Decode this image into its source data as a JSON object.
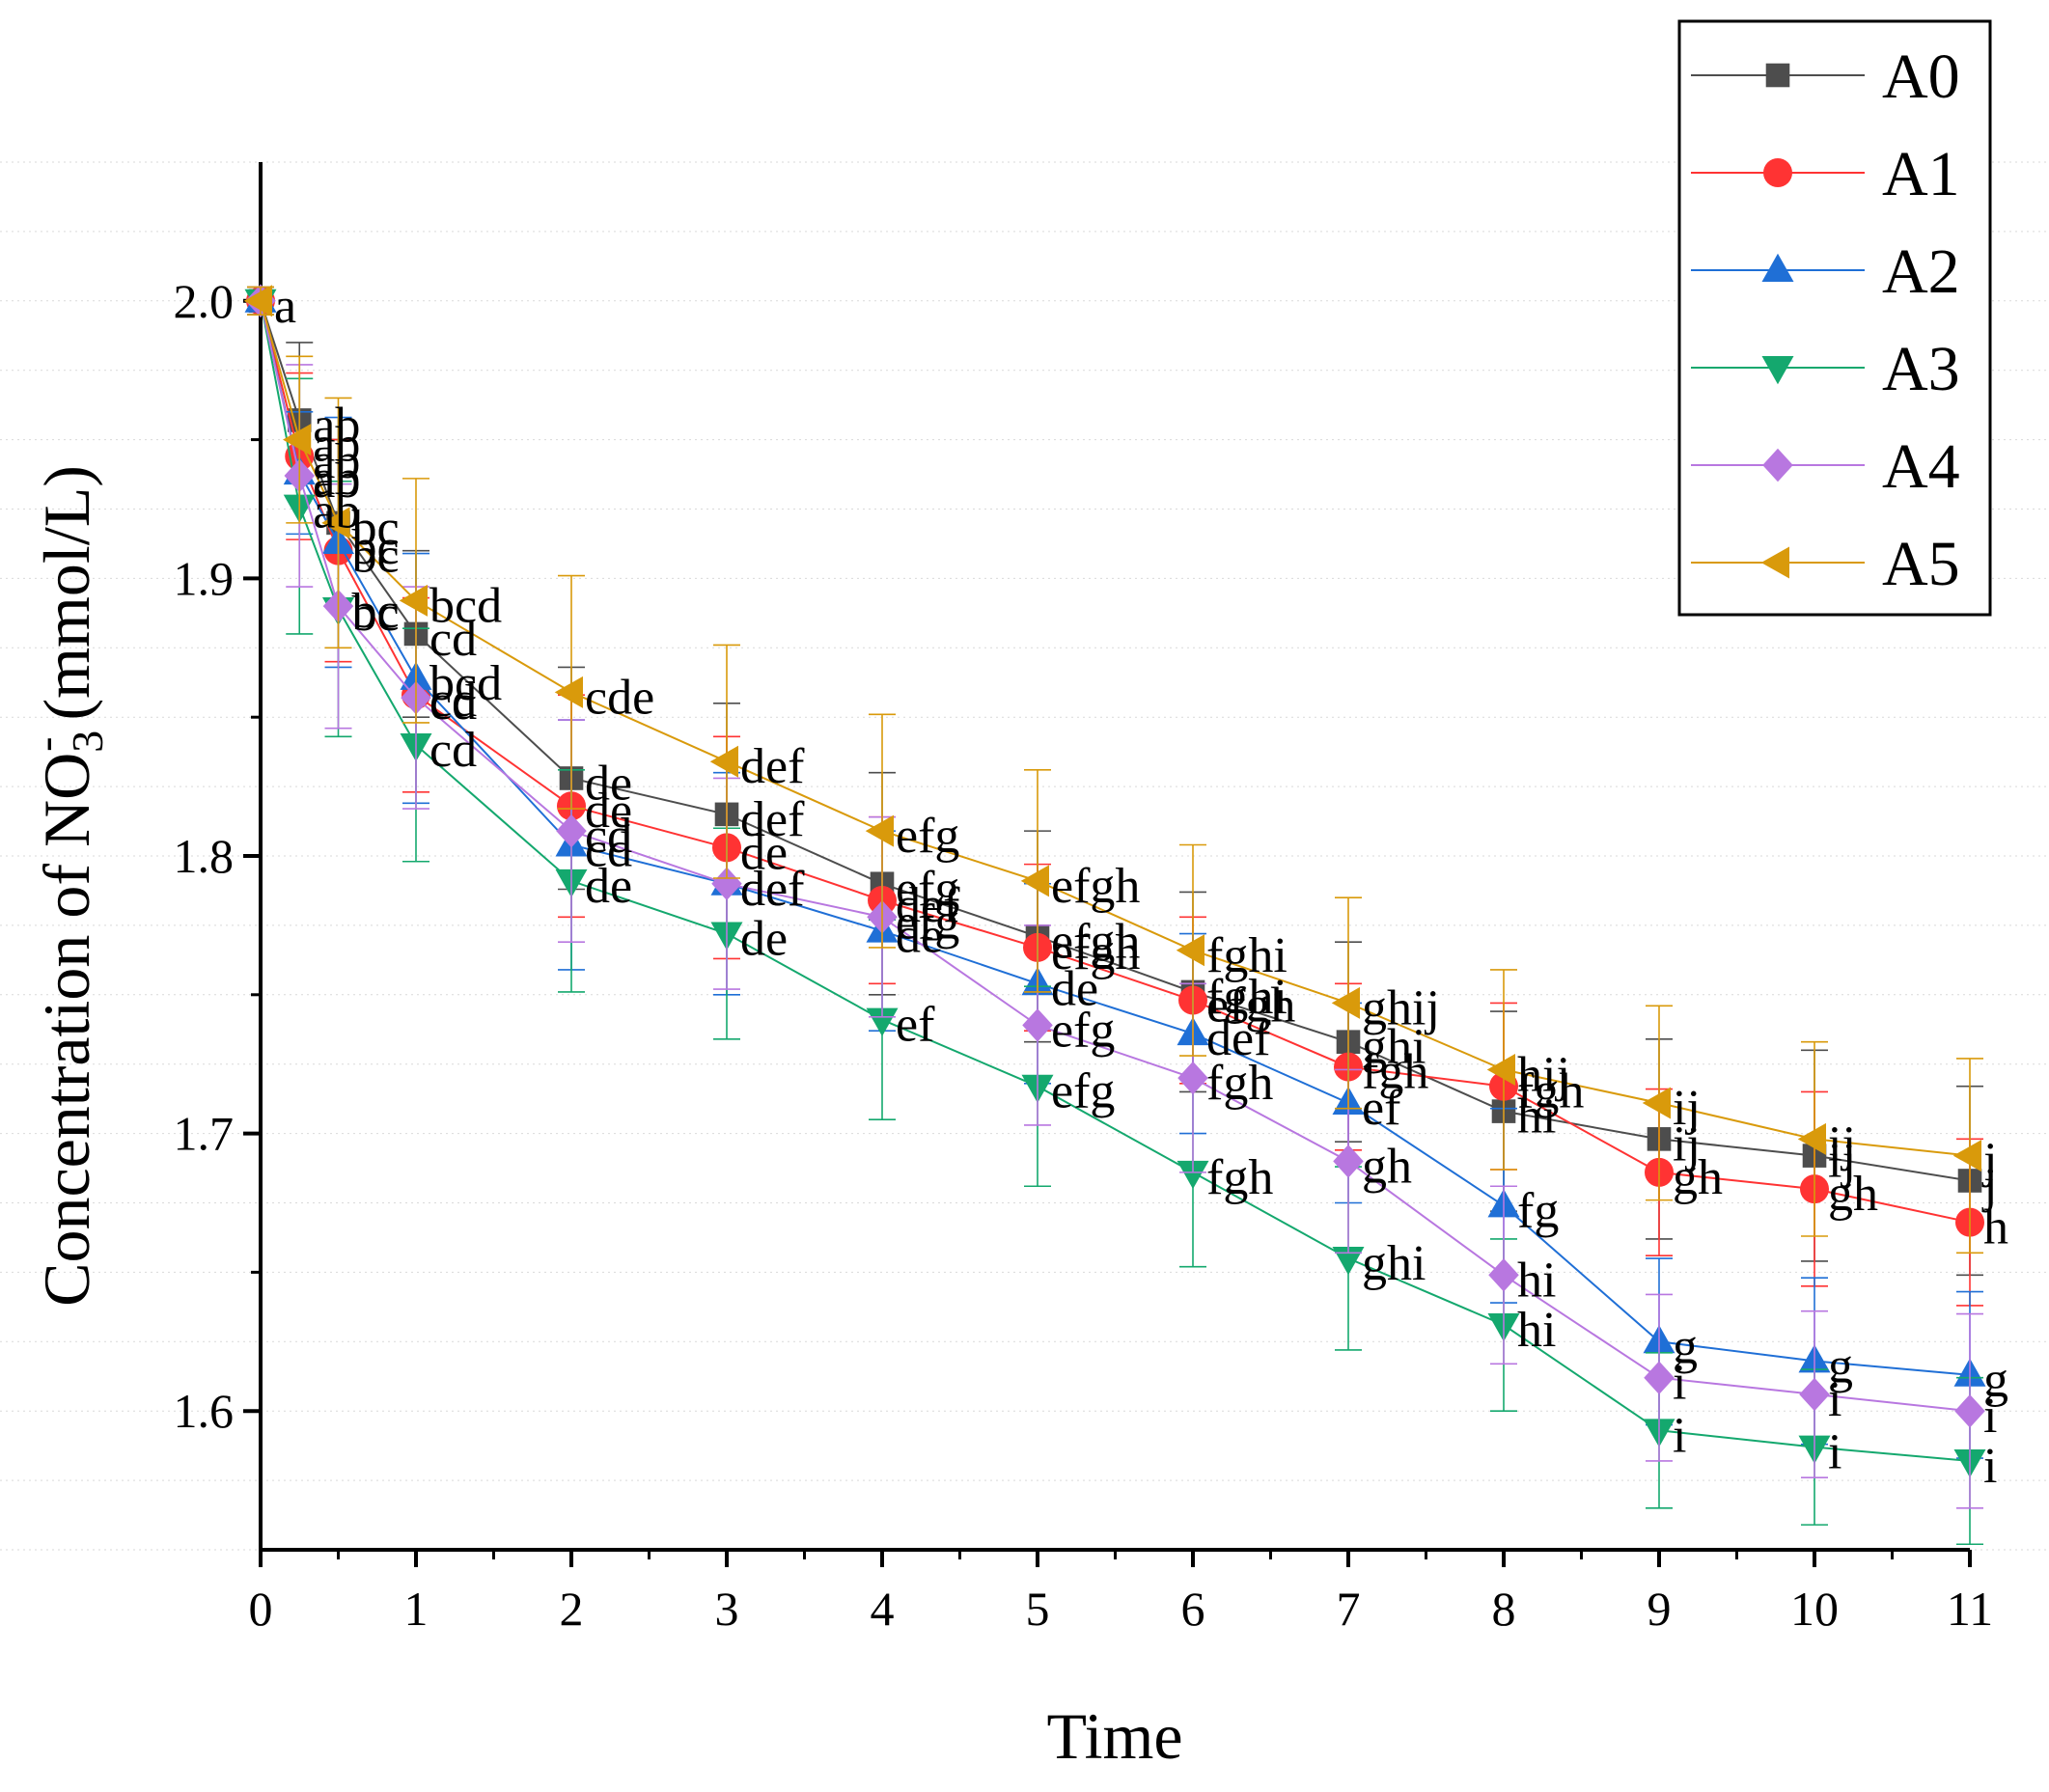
{
  "chart_data": {
    "type": "line",
    "title": "",
    "xlabel": "Time",
    "ylabel": {
      "prefix": "Concentration of NO",
      "sub": "3",
      "sup": "-",
      "suffix": " (mmol/L)"
    },
    "xlim": [
      0,
      11
    ],
    "ylim": [
      1.55,
      2.05
    ],
    "x_ticks": [
      0,
      1,
      2,
      3,
      4,
      5,
      6,
      7,
      8,
      9,
      10,
      11
    ],
    "x_tick_labels": [
      "0",
      "1",
      "2",
      "3",
      "4",
      "5",
      "6",
      "7",
      "8",
      "9",
      "10",
      "11"
    ],
    "y_ticks": [
      1.6,
      1.7,
      1.8,
      1.9,
      2.0
    ],
    "y_tick_labels": [
      "1.6",
      "1.7",
      "1.8",
      "1.9",
      "2.0"
    ],
    "grid": true,
    "legend_position": "top-right",
    "x": [
      0,
      0.25,
      0.5,
      1,
      2,
      3,
      4,
      5,
      6,
      7,
      8,
      9,
      10,
      11
    ],
    "series": [
      {
        "name": "A0",
        "color": "#4d4d4d",
        "marker": "square",
        "values": [
          2.0,
          1.957,
          1.92,
          1.88,
          1.828,
          1.815,
          1.79,
          1.771,
          1.751,
          1.733,
          1.708,
          1.698,
          1.692,
          1.683
        ],
        "errors": [
          0.005,
          0.028,
          0.03,
          0.03,
          0.04,
          0.04,
          0.04,
          0.038,
          0.036,
          0.036,
          0.036,
          0.036,
          0.038,
          0.034
        ],
        "letters": [
          "",
          "ab",
          "bc",
          "cd",
          "de",
          "def",
          "efg",
          "efgh",
          "fghi",
          "ghi",
          "hi",
          "ij",
          "ij",
          "j"
        ]
      },
      {
        "name": "A1",
        "color": "#ff3333",
        "marker": "circle",
        "values": [
          2.0,
          1.944,
          1.91,
          1.858,
          1.818,
          1.803,
          1.784,
          1.767,
          1.748,
          1.724,
          1.717,
          1.686,
          1.68,
          1.668
        ],
        "errors": [
          0.005,
          0.03,
          0.04,
          0.035,
          0.04,
          0.04,
          0.03,
          0.03,
          0.03,
          0.03,
          0.03,
          0.03,
          0.035,
          0.03
        ],
        "letters": [
          "",
          "ab",
          "bc",
          "cd",
          "de",
          "de",
          "def",
          "efgh",
          "efgh",
          "fgh",
          "fgh",
          "gh",
          "gh",
          "h"
        ]
      },
      {
        "name": "A2",
        "color": "#1f6fd6",
        "marker": "triangle-up",
        "values": [
          2.0,
          1.938,
          1.913,
          1.864,
          1.804,
          1.79,
          1.773,
          1.754,
          1.736,
          1.711,
          1.674,
          1.625,
          1.618,
          1.613
        ],
        "errors": [
          0.005,
          0.022,
          0.045,
          0.045,
          0.045,
          0.04,
          0.036,
          0.036,
          0.036,
          0.036,
          0.035,
          0.03,
          0.03,
          0.03
        ],
        "letters": [
          "",
          "ab",
          "bc",
          "bcd",
          "cd",
          "def",
          "de",
          "de",
          "def",
          "ef",
          "fg",
          "g",
          "g",
          "g"
        ]
      },
      {
        "name": "A3",
        "color": "#14a86e",
        "marker": "triangle-down",
        "values": [
          2.0,
          1.926,
          1.889,
          1.84,
          1.791,
          1.772,
          1.741,
          1.717,
          1.686,
          1.655,
          1.631,
          1.593,
          1.587,
          1.582
        ],
        "errors": [
          0.005,
          0.046,
          0.046,
          0.042,
          0.04,
          0.038,
          0.036,
          0.036,
          0.034,
          0.033,
          0.031,
          0.028,
          0.028,
          0.03
        ],
        "letters": [
          "",
          "ab",
          "bc",
          "cd",
          "de",
          "de",
          "ef",
          "efg",
          "fgh",
          "ghi",
          "hi",
          "i",
          "i",
          "i"
        ]
      },
      {
        "name": "A4",
        "color": "#b877e0",
        "marker": "diamond",
        "values": [
          2.0,
          1.937,
          1.89,
          1.857,
          1.809,
          1.79,
          1.778,
          1.739,
          1.72,
          1.69,
          1.649,
          1.612,
          1.606,
          1.6
        ],
        "errors": [
          0.005,
          0.04,
          0.044,
          0.04,
          0.04,
          0.038,
          0.036,
          0.036,
          0.034,
          0.033,
          0.032,
          0.03,
          0.03,
          0.035
        ],
        "letters": [
          "",
          "ab",
          "bc",
          "cd",
          "cd",
          "def",
          "efg",
          "efg",
          "fgh",
          "gh",
          "hi",
          "i",
          "i",
          "i"
        ]
      },
      {
        "name": "A5",
        "color": "#d99a0b",
        "marker": "triangle-left",
        "values": [
          2.0,
          1.95,
          1.92,
          1.892,
          1.859,
          1.834,
          1.809,
          1.791,
          1.766,
          1.747,
          1.723,
          1.711,
          1.698,
          1.692
        ],
        "errors": [
          0.005,
          0.03,
          0.045,
          0.044,
          0.042,
          0.042,
          0.042,
          0.04,
          0.038,
          0.038,
          0.036,
          0.035,
          0.035,
          0.035
        ],
        "letters": [
          "a",
          "ab",
          "bc",
          "bcd",
          "cde",
          "def",
          "efg",
          "efgh",
          "fghi",
          "ghij",
          "hij",
          "ij",
          "ij",
          "j"
        ]
      }
    ]
  }
}
